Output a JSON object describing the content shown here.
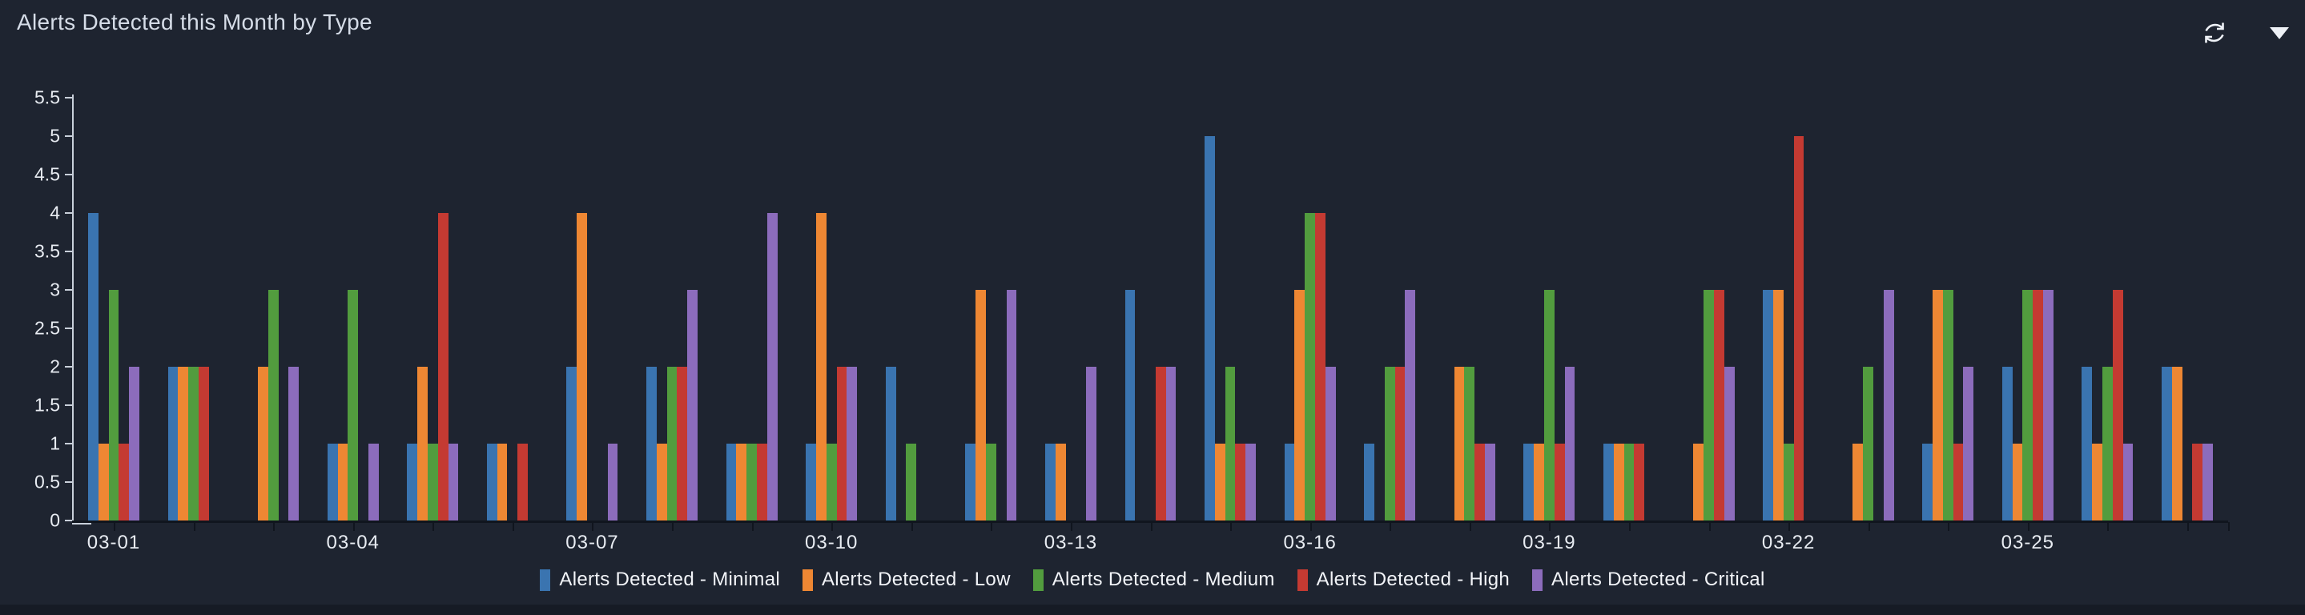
{
  "header": {
    "title": "Alerts Detected this Month by Type"
  },
  "toolbar": {
    "refresh_icon": "refresh",
    "dropdown_icon": "chevron-down"
  },
  "colors": {
    "background": "#1e2430",
    "y_axis_line": "#c9d0da",
    "x_axis_line": "#10151e",
    "axis_text": "#e8ecf2",
    "title_text": "#d6dde8",
    "legend_text": "#f2f4f8",
    "footer_strip": "#161b25"
  },
  "chart_data": {
    "type": "bar",
    "title": "Alerts Detected this Month by Type",
    "xlabel": "",
    "ylabel": "",
    "ylim": [
      0,
      5.5
    ],
    "y_tick_step": 0.5,
    "grid": false,
    "legend_position": "bottom",
    "categories": [
      "03-01",
      "03-02",
      "03-03",
      "03-04",
      "03-05",
      "03-06",
      "03-07",
      "03-08",
      "03-09",
      "03-10",
      "03-11",
      "03-12",
      "03-13",
      "03-14",
      "03-15",
      "03-16",
      "03-17",
      "03-18",
      "03-19",
      "03-20",
      "03-21",
      "03-22",
      "03-23",
      "03-24",
      "03-25",
      "03-26",
      "03-27"
    ],
    "x_axis_labels_visible": [
      "03-01",
      "03-04",
      "03-07",
      "03-10",
      "03-13",
      "03-16",
      "03-19",
      "03-22",
      "03-25"
    ],
    "series": [
      {
        "name": "Alerts Detected - Minimal",
        "color": "#3a74b0",
        "values": [
          4,
          2,
          0,
          1,
          1,
          1,
          2,
          2,
          1,
          1,
          2,
          1,
          1,
          3,
          5,
          1,
          1,
          0,
          1,
          1,
          0,
          3,
          0,
          1,
          2,
          2,
          2
        ]
      },
      {
        "name": "Alerts Detected - Low",
        "color": "#ee8733",
        "values": [
          1,
          2,
          2,
          1,
          2,
          1,
          4,
          1,
          1,
          4,
          0,
          3,
          1,
          0,
          1,
          3,
          0,
          2,
          1,
          1,
          1,
          3,
          1,
          3,
          1,
          1,
          2
        ]
      },
      {
        "name": "Alerts Detected - Medium",
        "color": "#529c3e",
        "values": [
          3,
          2,
          3,
          3,
          1,
          0,
          0,
          2,
          1,
          1,
          1,
          1,
          0,
          0,
          2,
          4,
          2,
          2,
          3,
          1,
          3,
          1,
          2,
          3,
          3,
          2,
          0
        ]
      },
      {
        "name": "Alerts Detected - High",
        "color": "#c43a32",
        "values": [
          1,
          2,
          0,
          0,
          4,
          1,
          0,
          2,
          1,
          2,
          0,
          0,
          0,
          2,
          1,
          4,
          2,
          1,
          1,
          1,
          3,
          5,
          0,
          1,
          3,
          3,
          1
        ]
      },
      {
        "name": "Alerts Detected - Critical",
        "color": "#8c6cbc",
        "values": [
          2,
          0,
          2,
          1,
          1,
          0,
          1,
          3,
          4,
          2,
          0,
          3,
          2,
          2,
          1,
          2,
          3,
          1,
          2,
          0,
          2,
          0,
          3,
          2,
          3,
          1,
          1
        ]
      }
    ]
  }
}
